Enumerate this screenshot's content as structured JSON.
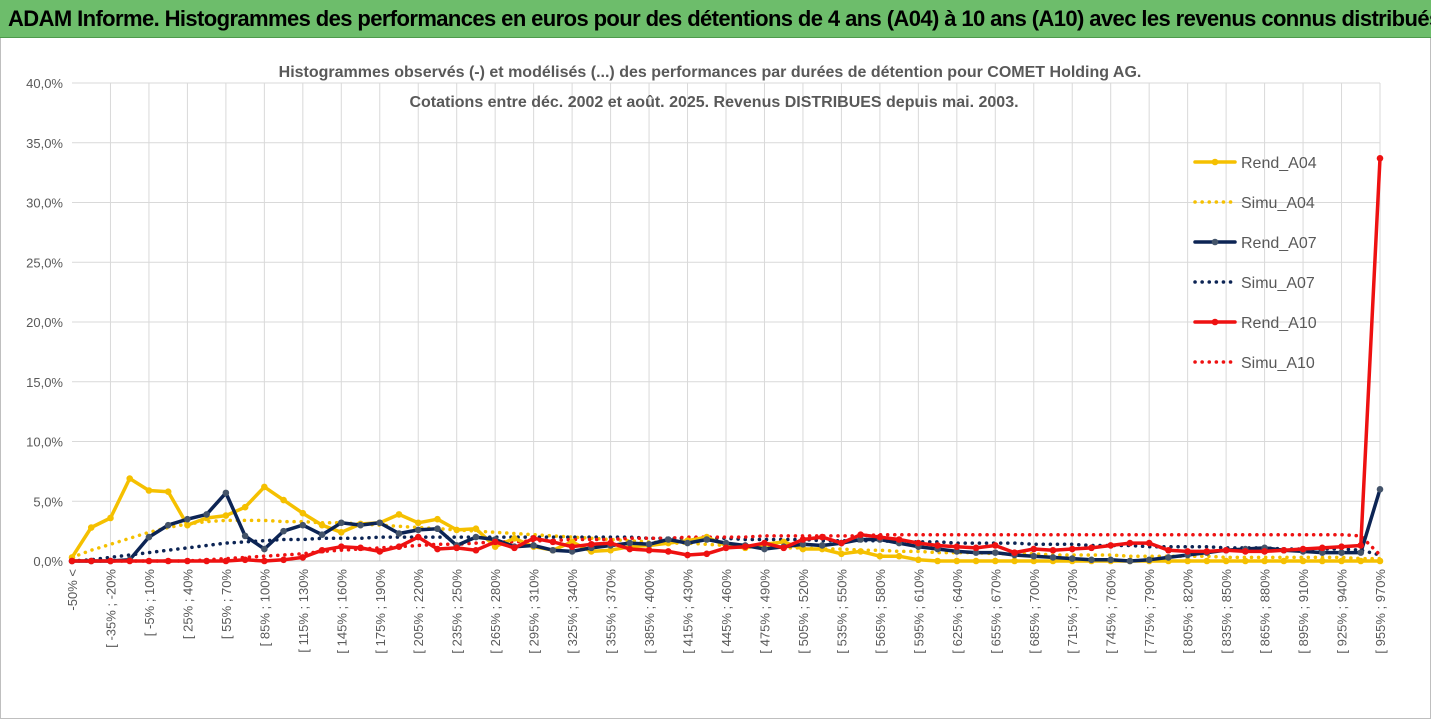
{
  "banner": {
    "title": "ADAM Informe. Histogrammes des performances en euros pour des détentions de 4 ans (A04) à 10 ans (A10) avec les revenus connus distribués"
  },
  "colors": {
    "banner_bg": "#6dbd6b",
    "a04": "#f5c000",
    "a07": "#0c2454",
    "a10": "#ee1111",
    "grid": "#d9d9d9"
  },
  "chart_data": {
    "type": "line",
    "title_line1": "Histogrammes observés (-) et modélisés (...) des performances par durées de détention pour COMET Holding AG.",
    "title_line2": "Cotations entre déc. 2002 et août. 2025. Revenus DISTRIBUES depuis mai. 2003.",
    "ylim": [
      0,
      40
    ],
    "yticks": [
      "0,0%",
      "5,0%",
      "10,0%",
      "15,0%",
      "20,0%",
      "25,0%",
      "30,0%",
      "35,0%",
      "40,0%"
    ],
    "xtick_labels": [
      "-50% <",
      "[ -35% ; -20%",
      "[ -5% ; 10%",
      "[ 25% ; 40%",
      "[ 55% ; 70%",
      "[ 85% ; 100%",
      "[ 115% ; 130%",
      "[ 145% ; 160%",
      "[ 175% ; 190%",
      "[ 205% ; 220%",
      "[ 235% ; 250%",
      "[ 265% ; 280%",
      "[ 295% ; 310%",
      "[ 325% ; 340%",
      "[ 355% ; 370%",
      "[ 385% ; 400%",
      "[ 415% ; 430%",
      "[ 445% ; 460%",
      "[ 475% ; 490%",
      "[ 505% ; 520%",
      "[ 535% ; 550%",
      "[ 565% ; 580%",
      "[ 595% ; 610%",
      "[ 625% ; 640%",
      "[ 655% ; 670%",
      "[ 685% ; 700%",
      "[ 715% ; 730%",
      "[ 745% ; 760%",
      "[ 775% ; 790%",
      "[ 805% ; 820%",
      "[ 835% ; 850%",
      "[ 865% ; 880%",
      "[ 895% ; 910%",
      "[ 925% ; 940%",
      "[ 955% ; 970%"
    ],
    "num_points": 69,
    "legend_position": "right",
    "series": [
      {
        "name": "Rend_A04",
        "style": "solid",
        "color": "#f5c000",
        "values": [
          0.3,
          2.8,
          3.6,
          6.9,
          5.9,
          5.8,
          3.0,
          3.6,
          3.8,
          4.5,
          6.2,
          5.1,
          4.0,
          3.0,
          2.4,
          3.1,
          3.2,
          3.9,
          3.2,
          3.5,
          2.6,
          2.7,
          1.2,
          1.9,
          1.2,
          0.9,
          1.6,
          0.8,
          0.9,
          1.2,
          1.3,
          1.5,
          1.7,
          2.0,
          1.3,
          1.1,
          1.4,
          1.6,
          1.0,
          1.0,
          0.6,
          0.8,
          0.4,
          0.4,
          0.1,
          0.0,
          0.0,
          0.0,
          0.0,
          0.0,
          0.0,
          0.0,
          0.0,
          0.0,
          0.0,
          0.0,
          0.0,
          0.0,
          0.0,
          0.0,
          0.0,
          0.0,
          0.0,
          0.0,
          0.0,
          0.0,
          0.0,
          0.0,
          0.0
        ]
      },
      {
        "name": "Simu_A04",
        "style": "dotted",
        "color": "#f5c000",
        "values": [
          0.3,
          0.9,
          1.4,
          1.9,
          2.4,
          2.8,
          3.1,
          3.3,
          3.4,
          3.4,
          3.4,
          3.3,
          3.3,
          3.2,
          3.2,
          3.1,
          3.0,
          2.9,
          2.8,
          2.7,
          2.6,
          2.5,
          2.4,
          2.3,
          2.2,
          2.1,
          2.0,
          1.9,
          1.8,
          1.7,
          1.6,
          1.5,
          1.5,
          1.4,
          1.3,
          1.3,
          1.2,
          1.1,
          1.1,
          1.0,
          1.0,
          0.9,
          0.9,
          0.8,
          0.8,
          0.7,
          0.7,
          0.7,
          0.6,
          0.6,
          0.6,
          0.5,
          0.5,
          0.5,
          0.5,
          0.4,
          0.4,
          0.4,
          0.4,
          0.4,
          0.3,
          0.3,
          0.3,
          0.3,
          0.3,
          0.3,
          0.3,
          0.2,
          0.2
        ]
      },
      {
        "name": "Rend_A07",
        "style": "solid",
        "color": "#0c2454",
        "values": [
          0.0,
          0.0,
          0.0,
          0.1,
          2.0,
          3.0,
          3.5,
          3.9,
          5.7,
          2.1,
          1.0,
          2.5,
          3.0,
          2.2,
          3.2,
          3.0,
          3.2,
          2.3,
          2.6,
          2.7,
          1.3,
          2.0,
          1.8,
          1.2,
          1.3,
          0.9,
          0.8,
          1.1,
          1.3,
          1.5,
          1.4,
          1.8,
          1.5,
          1.8,
          1.5,
          1.3,
          1.0,
          1.2,
          1.4,
          1.3,
          1.5,
          1.8,
          1.8,
          1.5,
          1.2,
          1.0,
          0.8,
          0.7,
          0.7,
          0.5,
          0.4,
          0.3,
          0.2,
          0.1,
          0.1,
          0.0,
          0.1,
          0.3,
          0.5,
          0.7,
          0.9,
          1.0,
          1.1,
          0.9,
          0.8,
          0.7,
          0.7,
          0.7,
          6.0
        ]
      },
      {
        "name": "Simu_A07",
        "style": "dotted",
        "color": "#0c2454",
        "values": [
          0.0,
          0.1,
          0.3,
          0.5,
          0.7,
          0.9,
          1.1,
          1.3,
          1.5,
          1.6,
          1.7,
          1.8,
          1.8,
          1.9,
          1.9,
          1.9,
          2.0,
          2.0,
          2.0,
          2.0,
          2.0,
          2.0,
          2.0,
          2.0,
          2.0,
          2.0,
          2.0,
          2.0,
          2.0,
          2.0,
          1.9,
          1.9,
          1.9,
          1.9,
          1.9,
          1.8,
          1.8,
          1.8,
          1.8,
          1.7,
          1.7,
          1.7,
          1.7,
          1.6,
          1.6,
          1.6,
          1.5,
          1.5,
          1.5,
          1.5,
          1.4,
          1.4,
          1.4,
          1.3,
          1.3,
          1.3,
          1.2,
          1.2,
          1.2,
          1.2,
          1.1,
          1.1,
          1.1,
          1.0,
          1.0,
          1.0,
          1.0,
          0.9,
          0.5
        ]
      },
      {
        "name": "Rend_A10",
        "style": "solid",
        "color": "#ee1111",
        "values": [
          0.0,
          0.0,
          0.0,
          0.0,
          0.0,
          0.0,
          0.0,
          0.0,
          0.0,
          0.1,
          0.0,
          0.1,
          0.3,
          0.9,
          1.2,
          1.1,
          0.8,
          1.2,
          2.0,
          1.0,
          1.1,
          0.9,
          1.6,
          1.1,
          1.9,
          1.6,
          1.2,
          1.4,
          1.5,
          1.0,
          0.9,
          0.8,
          0.5,
          0.6,
          1.1,
          1.2,
          1.5,
          1.1,
          1.8,
          2.0,
          1.5,
          2.2,
          2.0,
          1.8,
          1.5,
          1.3,
          1.2,
          1.1,
          1.3,
          0.7,
          1.0,
          0.9,
          1.0,
          1.1,
          1.3,
          1.5,
          1.5,
          0.9,
          0.8,
          0.8,
          0.9,
          0.8,
          0.8,
          0.9,
          1.0,
          1.1,
          1.2,
          1.3,
          33.7
        ]
      },
      {
        "name": "Simu_A10",
        "style": "dotted",
        "color": "#ee1111",
        "values": [
          0.0,
          0.0,
          0.0,
          0.0,
          0.0,
          0.0,
          0.0,
          0.1,
          0.2,
          0.3,
          0.4,
          0.5,
          0.6,
          0.8,
          0.9,
          1.0,
          1.1,
          1.2,
          1.3,
          1.4,
          1.4,
          1.5,
          1.6,
          1.6,
          1.7,
          1.7,
          1.8,
          1.8,
          1.8,
          1.9,
          1.9,
          1.9,
          2.0,
          2.0,
          2.0,
          2.0,
          2.1,
          2.1,
          2.1,
          2.1,
          2.1,
          2.1,
          2.2,
          2.2,
          2.2,
          2.2,
          2.2,
          2.2,
          2.2,
          2.2,
          2.2,
          2.2,
          2.2,
          2.2,
          2.2,
          2.2,
          2.2,
          2.2,
          2.2,
          2.2,
          2.2,
          2.2,
          2.2,
          2.2,
          2.2,
          2.2,
          2.2,
          2.1,
          0.5
        ]
      }
    ]
  }
}
